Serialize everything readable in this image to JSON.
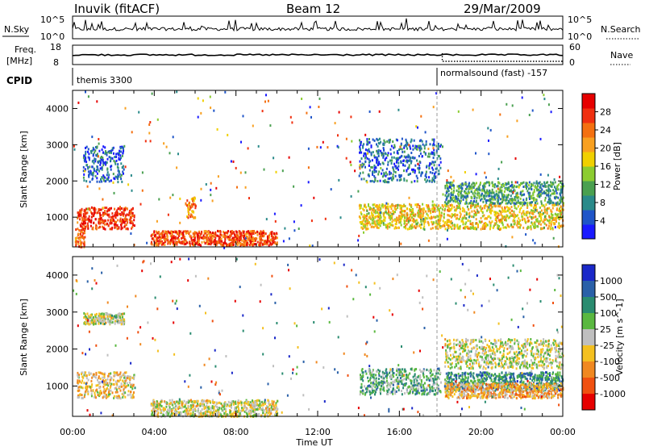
{
  "header": {
    "station": "Inuvik  (fitACF)",
    "beam": "Beam 12",
    "date": "29/Mar/2009"
  },
  "top_panels": {
    "nsky_label": "N.Sky",
    "nsearch_label": "N.Search",
    "nsky_ticks": [
      "10^5",
      "10^0"
    ],
    "nsearch_ticks": [
      "10^5",
      "10^0"
    ],
    "freq_label_line1": "Freq.",
    "freq_label_line2": "[MHz]",
    "freq_ticks": [
      "18",
      "8"
    ],
    "nave_label": "Nave",
    "nave_ticks": [
      "60",
      "0"
    ],
    "cpid_label": "CPID",
    "cpid_segments": [
      "themis 3300",
      "normalsound (fast) -157"
    ]
  },
  "x_axis": {
    "label": "Time UT",
    "ticks": [
      "00:00",
      "04:00",
      "08:00",
      "12:00",
      "16:00",
      "20:00",
      "00:00"
    ]
  },
  "colors": {
    "power_scale": [
      "#1a1aff",
      "#1f55c8",
      "#2a8a8a",
      "#4aa050",
      "#8ccc30",
      "#f0d000",
      "#f8a020",
      "#f47010",
      "#f03010",
      "#e60000"
    ],
    "velocity_scale": [
      "#1a28c8",
      "#2a60a8",
      "#2a8c70",
      "#5ab840",
      "#bfbfbf",
      "#f4c020",
      "#f08820",
      "#f05010",
      "#e60000"
    ]
  },
  "chart_data": [
    {
      "type": "heatmap",
      "title": "Power",
      "ylabel": "Slant Range [km]",
      "xlabel": "Time UT",
      "colorbar_label": "Power [dB]",
      "colorbar_ticks": [
        "28",
        "24",
        "20",
        "16",
        "12",
        "8",
        "4"
      ],
      "ylim": [
        180,
        4500
      ],
      "y_ticks": [
        "1000",
        "2000",
        "3000",
        "4000"
      ],
      "xlim": [
        0,
        24
      ],
      "regions": [
        {
          "t": [
            0.2,
            3.0
          ],
          "r": [
            700,
            1300
          ],
          "v": 28
        },
        {
          "t": [
            0.1,
            0.6
          ],
          "r": [
            200,
            700
          ],
          "v": 24
        },
        {
          "t": [
            3.8,
            10.0
          ],
          "r": [
            250,
            650
          ],
          "v": 26
        },
        {
          "t": [
            5.5,
            6.0
          ],
          "r": [
            1000,
            1600
          ],
          "v": 22
        },
        {
          "t": [
            14.0,
            24.0
          ],
          "r": [
            700,
            1400
          ],
          "v": 18
        },
        {
          "t": [
            18.2,
            24.0
          ],
          "r": [
            1400,
            2000
          ],
          "v": 10
        },
        {
          "t": [
            14.0,
            18.0
          ],
          "r": [
            2000,
            3200
          ],
          "v": 6
        },
        {
          "t": [
            0.5,
            2.5
          ],
          "r": [
            2000,
            3000
          ],
          "v": 6
        }
      ]
    },
    {
      "type": "heatmap",
      "title": "Velocity",
      "ylabel": "Slant Range [km]",
      "xlabel": "Time UT",
      "colorbar_label": "Velocity [m s^-1]",
      "colorbar_ticks": [
        "1000",
        "500",
        "100",
        "25",
        "-25",
        "-100",
        "-500",
        "-1000"
      ],
      "ylim": [
        180,
        4500
      ],
      "y_ticks": [
        "1000",
        "2000",
        "3000",
        "4000"
      ],
      "xlim": [
        0,
        24
      ],
      "regions": [
        {
          "t": [
            0.2,
            3.0
          ],
          "r": [
            700,
            1400
          ],
          "v": -200
        },
        {
          "t": [
            3.8,
            10.0
          ],
          "r": [
            200,
            650
          ],
          "v": -50
        },
        {
          "t": [
            14.0,
            18.0
          ],
          "r": [
            800,
            1500
          ],
          "v": 300
        },
        {
          "t": [
            18.2,
            24.0
          ],
          "r": [
            900,
            1400
          ],
          "v": 500
        },
        {
          "t": [
            18.2,
            24.0
          ],
          "r": [
            700,
            1100
          ],
          "v": -300
        },
        {
          "t": [
            18.2,
            24.0
          ],
          "r": [
            1500,
            2300
          ],
          "v": 0
        },
        {
          "t": [
            0.5,
            2.5
          ],
          "r": [
            2700,
            3000
          ],
          "v": 0
        }
      ]
    }
  ]
}
